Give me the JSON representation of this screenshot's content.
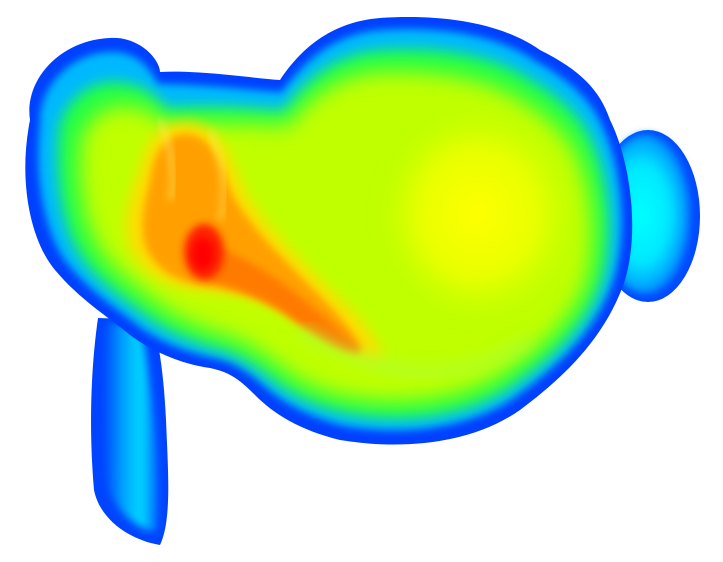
{
  "image": {
    "subject": "heatmap-volume-render",
    "background_color": "#ffffff",
    "colormap": [
      "#0000ff",
      "#0066ff",
      "#00c8ff",
      "#00ffff",
      "#00ff66",
      "#66ff00",
      "#ccff00",
      "#ffff00",
      "#ffcc00",
      "#ff8800",
      "#ff3300",
      "#ff0000"
    ]
  }
}
